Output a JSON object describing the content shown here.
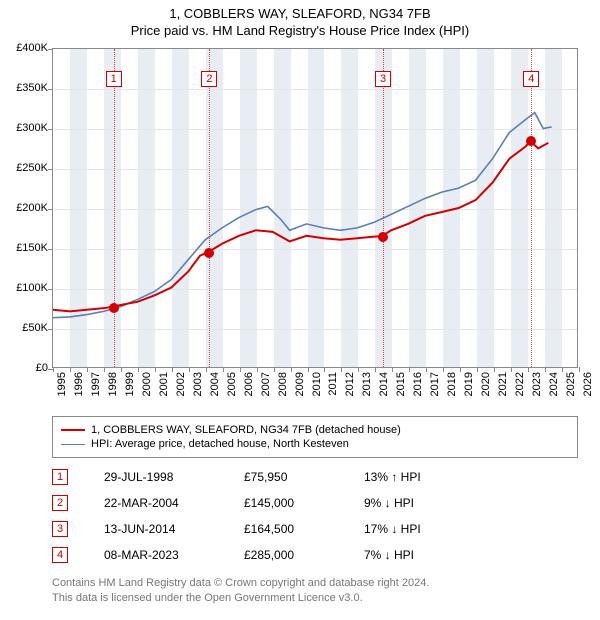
{
  "titles": {
    "line1": "1, COBBLERS WAY, SLEAFORD, NG34 7FB",
    "line2": "Price paid vs. HM Land Registry's House Price Index (HPI)"
  },
  "chart": {
    "type": "line",
    "background_color": "#ffffff",
    "band_color": "#e8edf4",
    "grid_color": "#e6e6e6",
    "axis_color": "#888888",
    "x": {
      "min": 1995,
      "max": 2026,
      "ticks": [
        1995,
        1996,
        1997,
        1998,
        1999,
        2000,
        2001,
        2002,
        2003,
        2004,
        2005,
        2006,
        2007,
        2008,
        2009,
        2010,
        2011,
        2012,
        2013,
        2014,
        2015,
        2016,
        2017,
        2018,
        2019,
        2020,
        2021,
        2022,
        2023,
        2024,
        2025,
        2026
      ],
      "label_fontsize": 11
    },
    "y": {
      "min": 0,
      "max": 400000,
      "step": 50000,
      "ticks": [
        "£0",
        "£50K",
        "£100K",
        "£150K",
        "£200K",
        "£250K",
        "£300K",
        "£350K",
        "£400K"
      ],
      "label_fontsize": 11
    },
    "series": {
      "property": {
        "color": "#d40000",
        "width": 2,
        "label": "1, COBBLERS WAY, SLEAFORD, NG34 7FB (detached house)",
        "points": [
          [
            1995.0,
            72000
          ],
          [
            1996.0,
            70000
          ],
          [
            1997.0,
            72000
          ],
          [
            1998.0,
            74000
          ],
          [
            1998.58,
            75950
          ],
          [
            1999.0,
            78000
          ],
          [
            2000.0,
            82000
          ],
          [
            2001.0,
            90000
          ],
          [
            2002.0,
            100000
          ],
          [
            2003.0,
            120000
          ],
          [
            2003.7,
            140000
          ],
          [
            2004.22,
            145000
          ],
          [
            2005.0,
            155000
          ],
          [
            2006.0,
            165000
          ],
          [
            2007.0,
            172000
          ],
          [
            2008.0,
            170000
          ],
          [
            2009.0,
            158000
          ],
          [
            2010.0,
            165000
          ],
          [
            2011.0,
            162000
          ],
          [
            2012.0,
            160000
          ],
          [
            2013.0,
            162000
          ],
          [
            2014.0,
            164000
          ],
          [
            2014.45,
            164500
          ],
          [
            2015.0,
            172000
          ],
          [
            2016.0,
            180000
          ],
          [
            2017.0,
            190000
          ],
          [
            2018.0,
            195000
          ],
          [
            2019.0,
            200000
          ],
          [
            2020.0,
            210000
          ],
          [
            2021.0,
            232000
          ],
          [
            2022.0,
            262000
          ],
          [
            2023.0,
            278000
          ],
          [
            2023.19,
            285000
          ],
          [
            2023.7,
            275000
          ],
          [
            2024.3,
            282000
          ]
        ]
      },
      "hpi": {
        "color": "#5a7fb8",
        "width": 1.6,
        "label": "HPI: Average price, detached house, North Kesteven",
        "points": [
          [
            1995.0,
            62000
          ],
          [
            1996.0,
            63000
          ],
          [
            1997.0,
            66000
          ],
          [
            1998.0,
            70000
          ],
          [
            1999.0,
            76000
          ],
          [
            2000.0,
            85000
          ],
          [
            2001.0,
            95000
          ],
          [
            2002.0,
            110000
          ],
          [
            2003.0,
            135000
          ],
          [
            2004.0,
            160000
          ],
          [
            2005.0,
            175000
          ],
          [
            2006.0,
            188000
          ],
          [
            2007.0,
            198000
          ],
          [
            2007.7,
            202000
          ],
          [
            2008.5,
            185000
          ],
          [
            2009.0,
            172000
          ],
          [
            2010.0,
            180000
          ],
          [
            2011.0,
            175000
          ],
          [
            2012.0,
            172000
          ],
          [
            2013.0,
            175000
          ],
          [
            2014.0,
            182000
          ],
          [
            2015.0,
            192000
          ],
          [
            2016.0,
            202000
          ],
          [
            2017.0,
            212000
          ],
          [
            2018.0,
            220000
          ],
          [
            2019.0,
            225000
          ],
          [
            2020.0,
            235000
          ],
          [
            2021.0,
            262000
          ],
          [
            2022.0,
            295000
          ],
          [
            2023.0,
            312000
          ],
          [
            2023.5,
            320000
          ],
          [
            2024.0,
            300000
          ],
          [
            2024.5,
            302000
          ]
        ]
      }
    },
    "marker_vline_color": "#d44444",
    "marker_dot_color": "#d40000",
    "marker_box_border": "#d40000",
    "markers": [
      {
        "n": "1",
        "year": 1998.58,
        "value": 75950
      },
      {
        "n": "2",
        "year": 2004.22,
        "value": 145000
      },
      {
        "n": "3",
        "year": 2014.45,
        "value": 164500
      },
      {
        "n": "4",
        "year": 2023.19,
        "value": 285000
      }
    ]
  },
  "legend": {
    "items": [
      {
        "color": "#d40000",
        "width": 2,
        "key": "chart.series.property.label"
      },
      {
        "color": "#5a7fb8",
        "width": 1.6,
        "key": "chart.series.hpi.label"
      }
    ]
  },
  "transactions": [
    {
      "n": "1",
      "date": "29-JUL-1998",
      "price": "£75,950",
      "diff": "13% ↑ HPI"
    },
    {
      "n": "2",
      "date": "22-MAR-2004",
      "price": "£145,000",
      "diff": "9% ↓ HPI"
    },
    {
      "n": "3",
      "date": "13-JUN-2014",
      "price": "£164,500",
      "diff": "17% ↓ HPI"
    },
    {
      "n": "4",
      "date": "08-MAR-2023",
      "price": "£285,000",
      "diff": "7% ↓ HPI"
    }
  ],
  "attribution": {
    "line1": "Contains HM Land Registry data © Crown copyright and database right 2024.",
    "line2": "This data is licensed under the Open Government Licence v3.0."
  }
}
